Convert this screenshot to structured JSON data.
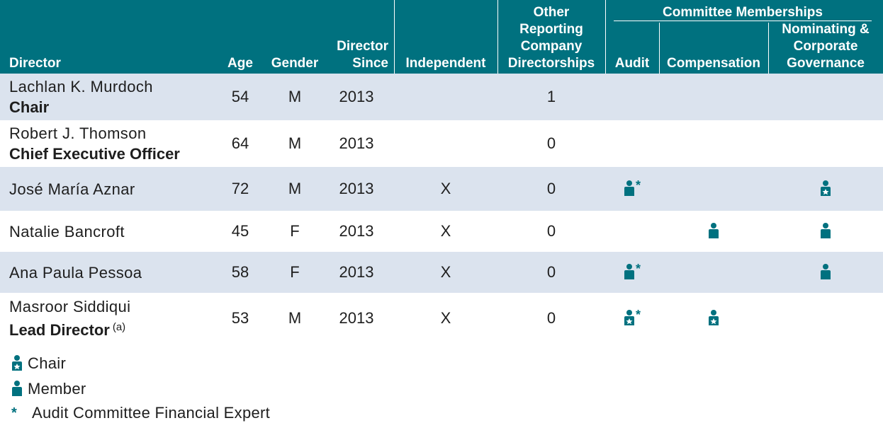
{
  "table": {
    "headers": {
      "director": "Director",
      "age": "Age",
      "gender": "Gender",
      "director_since": [
        "Director",
        "Since"
      ],
      "independent": "Independent",
      "other_directorships": [
        "Other",
        "Reporting",
        "Company",
        "Directorships"
      ],
      "committee_group": "Committee Memberships",
      "audit": "Audit",
      "compensation": "Compensation",
      "nominating": [
        "Nominating &",
        "Corporate",
        "Governance"
      ]
    },
    "rows": [
      {
        "name": "Lachlan K. Murdoch",
        "title": "Chair",
        "note": "",
        "age": "54",
        "gender": "M",
        "since": "2013",
        "independent": "",
        "other": "1",
        "audit": "",
        "audit_expert": false,
        "compensation": "",
        "nominating": ""
      },
      {
        "name": "Robert J. Thomson",
        "title": "Chief Executive Officer",
        "note": "",
        "age": "64",
        "gender": "M",
        "since": "2013",
        "independent": "",
        "other": "0",
        "audit": "",
        "audit_expert": false,
        "compensation": "",
        "nominating": ""
      },
      {
        "name": "José María Aznar",
        "title": "",
        "note": "",
        "age": "72",
        "gender": "M",
        "since": "2013",
        "independent": "X",
        "other": "0",
        "audit": "member",
        "audit_expert": true,
        "compensation": "",
        "nominating": "chair"
      },
      {
        "name": "Natalie Bancroft",
        "title": "",
        "note": "",
        "age": "45",
        "gender": "F",
        "since": "2013",
        "independent": "X",
        "other": "0",
        "audit": "",
        "audit_expert": false,
        "compensation": "member",
        "nominating": "member"
      },
      {
        "name": "Ana Paula Pessoa",
        "title": "",
        "note": "",
        "age": "58",
        "gender": "F",
        "since": "2013",
        "independent": "X",
        "other": "0",
        "audit": "member",
        "audit_expert": true,
        "compensation": "",
        "nominating": "member"
      },
      {
        "name": "Masroor Siddiqui",
        "title": "Lead Director",
        "note": "(a)",
        "age": "53",
        "gender": "M",
        "since": "2013",
        "independent": "X",
        "other": "0",
        "audit": "chair",
        "audit_expert": true,
        "compensation": "chair",
        "nominating": ""
      }
    ]
  },
  "legend": {
    "chair": "Chair",
    "member": "Member",
    "expert_symbol": "*",
    "expert": "Audit Committee Financial Expert"
  },
  "colors": {
    "header_bg": "#00717f",
    "row_shade": "#dbe3ee",
    "icon": "#00717f"
  },
  "icons": {
    "member": "person-icon",
    "chair": "person-star-icon"
  }
}
